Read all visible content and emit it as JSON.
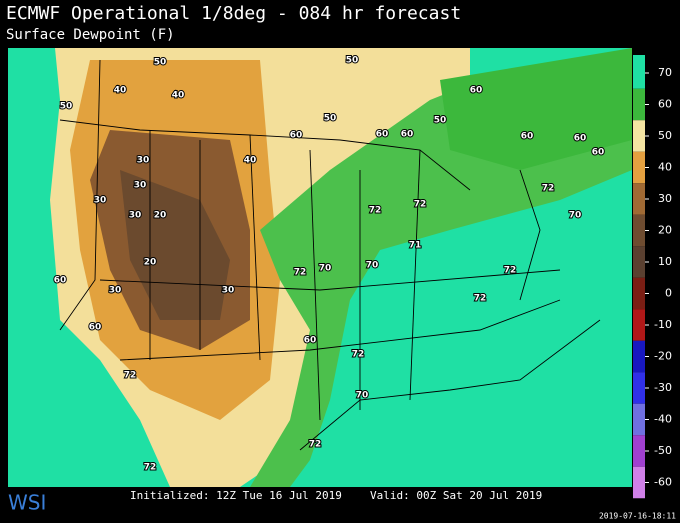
{
  "header": {
    "title": "ECMWF Operational 1/8deg - 084 hr forecast",
    "subtitle": "Surface Dewpoint (F)"
  },
  "colorbar": {
    "ticks": [
      70,
      60,
      50,
      40,
      30,
      20,
      10,
      0,
      -10,
      -20,
      -30,
      -40,
      -50,
      -60
    ],
    "colors": [
      "#1fe0a4",
      "#3cb83c",
      "#f4e4a2",
      "#e3a040",
      "#a06a34",
      "#6e4c30",
      "#5a4030",
      "#7a1e14",
      "#b01818",
      "#1818c0",
      "#3030e8",
      "#7070e0",
      "#a040d0",
      "#d080e8"
    ]
  },
  "map": {
    "contour_labels": [
      50,
      50,
      40,
      40,
      50,
      60,
      50,
      60,
      60,
      50,
      60,
      60,
      60,
      60,
      40,
      30,
      30,
      30,
      20,
      30,
      72,
      72,
      72,
      72,
      72,
      72,
      72,
      72,
      72,
      70,
      70,
      70,
      20,
      30,
      30,
      60,
      60,
      60,
      71,
      70,
      72
    ]
  },
  "footer": {
    "logo": "WSI",
    "initialized": "Initialized: 12Z Tue 16 Jul 2019",
    "valid": "Valid: 00Z Sat 20 Jul 2019",
    "timestamp": "2019-07-16-18:11"
  }
}
